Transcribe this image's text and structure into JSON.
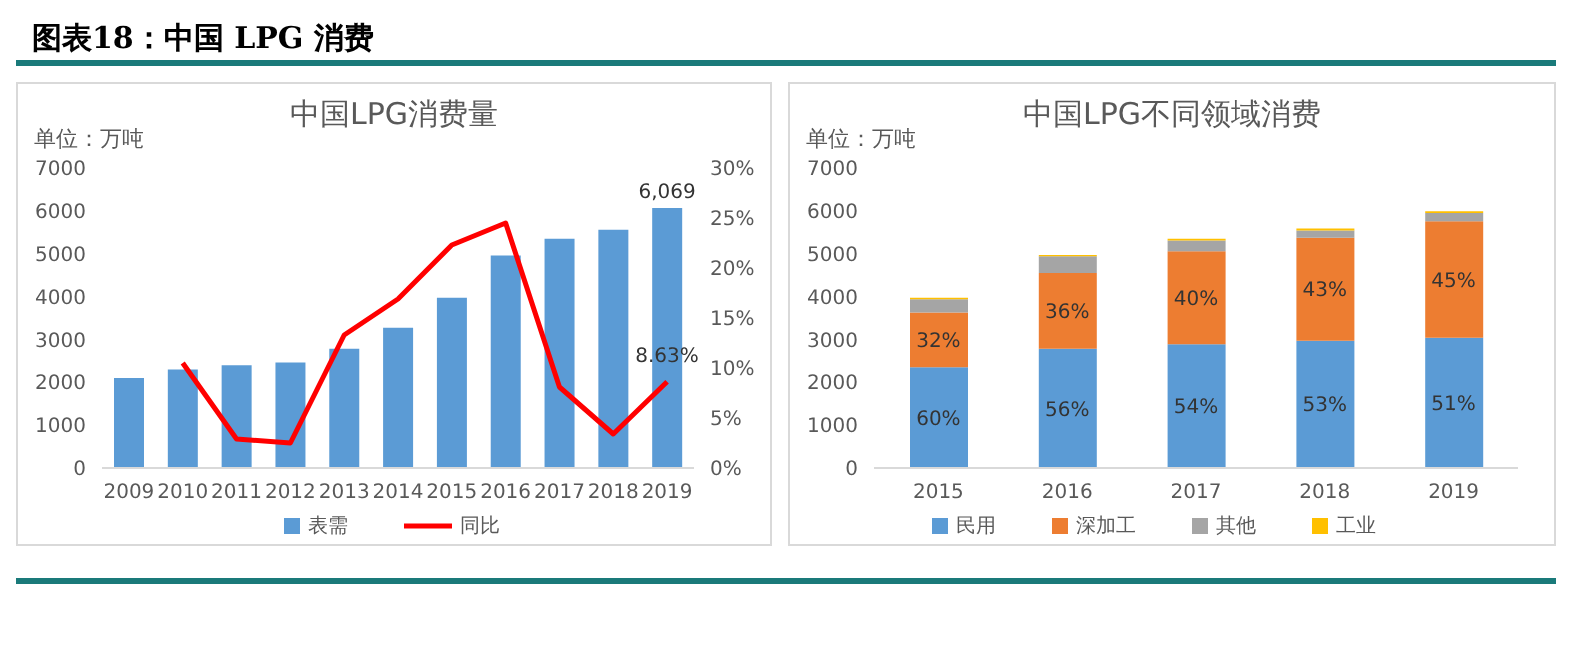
{
  "chart_data": [
    {
      "type": "bar",
      "title": "中国LPG消费量",
      "ylabel": "单位：万吨",
      "annotations": [
        "图表18：中国 LPG 消费"
      ],
      "categories": [
        "2009",
        "2010",
        "2011",
        "2012",
        "2013",
        "2014",
        "2015",
        "2016",
        "2017",
        "2018",
        "2019"
      ],
      "series": [
        {
          "name": "表需",
          "type": "bar",
          "color": "#5b9bd5",
          "values": [
            2100,
            2300,
            2400,
            2460,
            2780,
            3270,
            3970,
            4960,
            5350,
            5560,
            6069
          ],
          "value_labels": [
            null,
            null,
            null,
            null,
            null,
            null,
            null,
            null,
            null,
            null,
            "6,069"
          ]
        },
        {
          "name": "同比",
          "type": "line",
          "axis": "y2",
          "color": "#ff0000",
          "values": [
            null,
            10.5,
            2.9,
            2.5,
            13.3,
            16.9,
            22.3,
            24.5,
            8.1,
            3.4,
            8.63
          ],
          "value_labels": [
            null,
            null,
            null,
            null,
            null,
            null,
            null,
            null,
            null,
            null,
            "8.63%"
          ]
        }
      ],
      "ylim": [
        0,
        7000
      ],
      "yticks": [
        0,
        1000,
        2000,
        3000,
        4000,
        5000,
        6000,
        7000
      ],
      "y2lim": [
        0,
        30
      ],
      "y2ticks": [
        {
          "value": 0,
          "label": "0%"
        },
        {
          "value": 5,
          "label": "5%"
        },
        {
          "value": 10,
          "label": "10%"
        },
        {
          "value": 15,
          "label": "15%"
        },
        {
          "value": 20,
          "label": "20%"
        },
        {
          "value": 25,
          "label": "25%"
        },
        {
          "value": 30,
          "label": "30%"
        }
      ],
      "legend": "bottom"
    },
    {
      "type": "bar",
      "title": "中国LPG不同领域消费",
      "ylabel": "单位：万吨",
      "stacked": true,
      "categories": [
        "2015",
        "2016",
        "2017",
        "2018",
        "2019"
      ],
      "series": [
        {
          "name": "民用",
          "color": "#5b9bd5",
          "values": [
            2350,
            2780,
            2890,
            2970,
            3040
          ]
        },
        {
          "name": "深加工",
          "color": "#ed7d31",
          "values": [
            1280,
            1770,
            2170,
            2400,
            2720
          ]
        },
        {
          "name": "其他",
          "color": "#a5a5a5",
          "values": [
            310,
            390,
            250,
            170,
            190
          ]
        },
        {
          "name": "工业",
          "color": "#ffc000",
          "values": [
            30,
            30,
            40,
            50,
            40
          ]
        }
      ],
      "annotations": [
        "60%",
        "56%",
        "54%",
        "53%",
        "51%",
        "32%",
        "36%",
        "40%",
        "43%",
        "45%"
      ],
      "ylim": [
        0,
        7000
      ],
      "yticks": [
        0,
        1000,
        2000,
        3000,
        4000,
        5000,
        6000,
        7000
      ],
      "legend": "bottom"
    }
  ]
}
